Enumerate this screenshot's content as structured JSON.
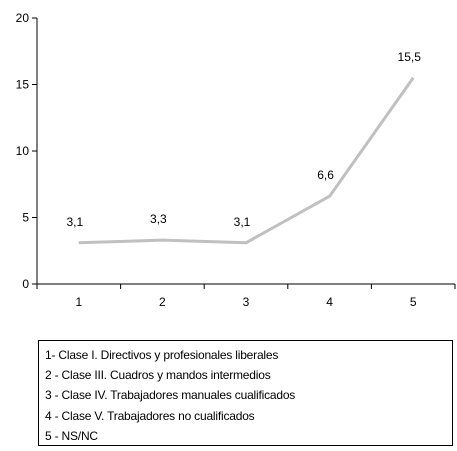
{
  "chart_data": {
    "type": "line",
    "categories": [
      "1",
      "2",
      "3",
      "4",
      "5"
    ],
    "series": [
      {
        "values": [
          3.1,
          3.3,
          3.1,
          6.6,
          15.5
        ],
        "labels": [
          "3,1",
          "3,3",
          "3,1",
          "6,6",
          "15,5"
        ],
        "color": "#c0c0c0"
      }
    ],
    "ylim": [
      0,
      20
    ],
    "yticks": [
      "0",
      "5",
      "10",
      "15",
      "20"
    ],
    "ytick_values": [
      0,
      5,
      10,
      15,
      20
    ],
    "grid": false,
    "legend": {
      "placement": "bottom",
      "entries": [
        "1- Clase I. Directivos y profesionales liberales",
        "2 - Clase III. Cuadros y mandos intermedios",
        "3 - Clase IV. Trabajadores manuales cualificados",
        "4 - Clase V. Trabajadores no cualificados",
        "5 - NS/NC"
      ]
    }
  }
}
